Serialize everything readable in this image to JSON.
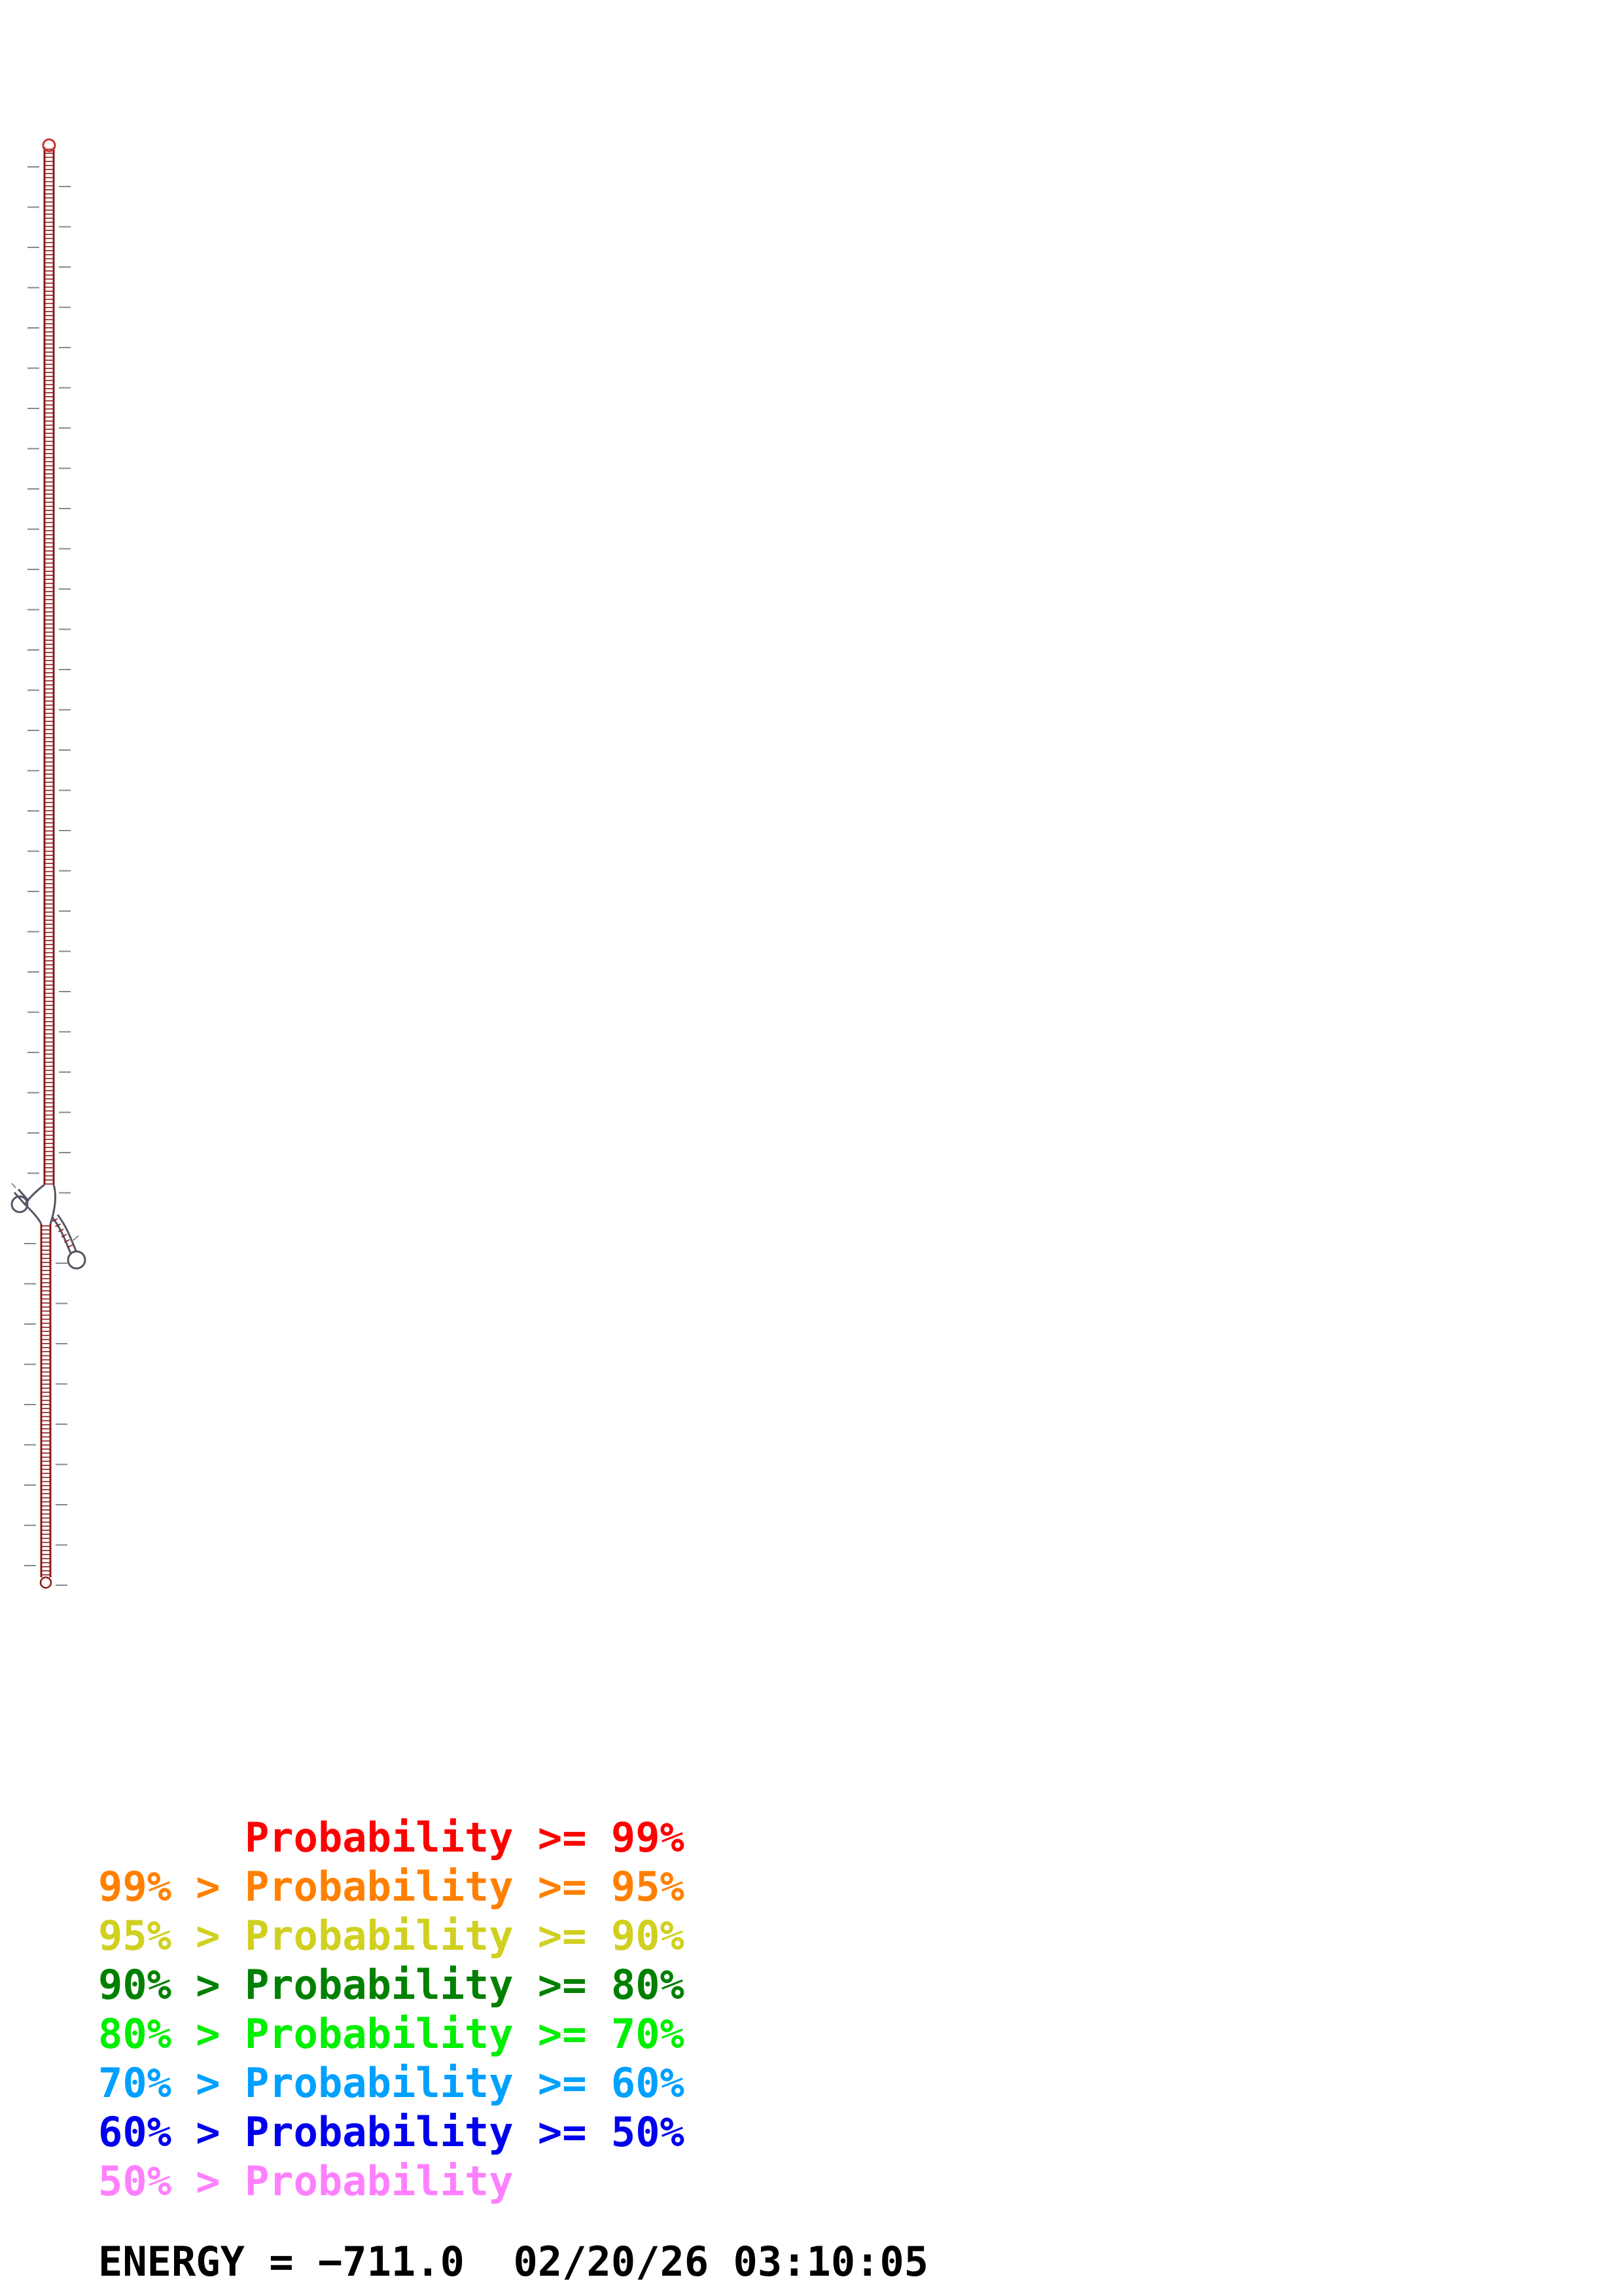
{
  "structure": {
    "main_color": "#8b1a1a",
    "tick_color": "#888888",
    "loop_color": "#555566"
  },
  "legend": [
    {
      "text": "      Probability >= 99%",
      "color": "#ff0000"
    },
    {
      "text": "99% > Probability >= 95%",
      "color": "#ff8000"
    },
    {
      "text": "95% > Probability >= 90%",
      "color": "#d0d020"
    },
    {
      "text": "90% > Probability >= 80%",
      "color": "#008000"
    },
    {
      "text": "80% > Probability >= 70%",
      "color": "#00ee00"
    },
    {
      "text": "70% > Probability >= 60%",
      "color": "#00a0ff"
    },
    {
      "text": "60% > Probability >= 50%",
      "color": "#0000ee"
    },
    {
      "text": "50% > Probability",
      "color": "#ff80ff"
    }
  ],
  "footer": {
    "text": "ENERGY = −711.0  02/20/26 03:10:05"
  }
}
